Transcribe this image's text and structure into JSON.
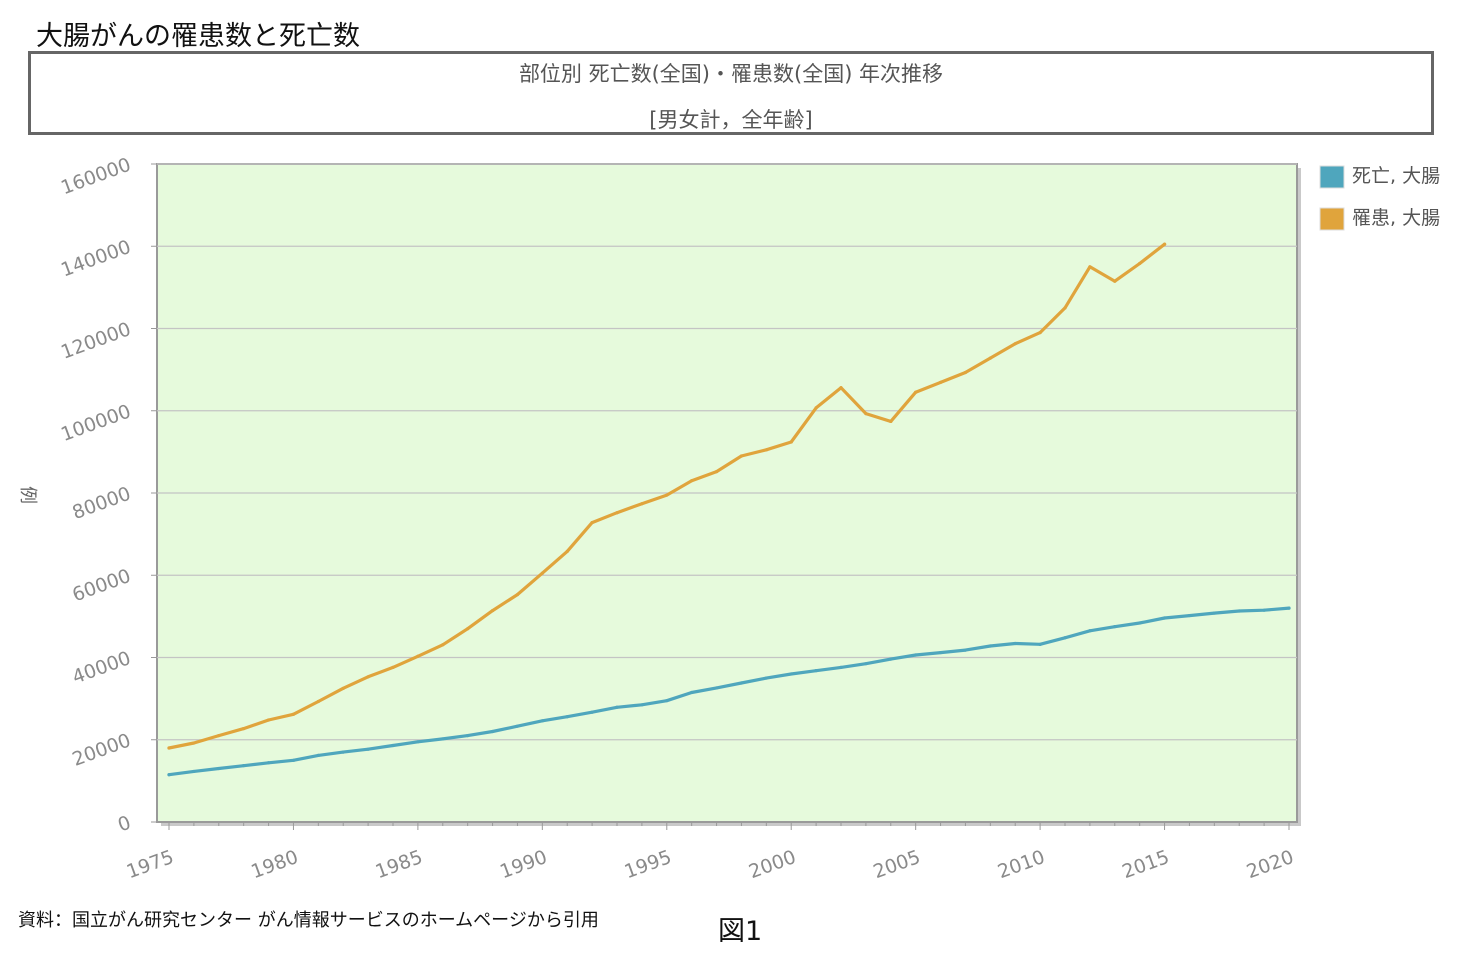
{
  "page": {
    "title": "大腸がんの罹患数と死亡数",
    "source": "資料：国立がん研究センター がん情報サービスのホームページから引用",
    "figure_label": "図1"
  },
  "chart_data": {
    "type": "line",
    "title": "部位別 死亡数(全国)・罹患数(全国) 年次推移",
    "subtitle": "[男女計，全年齢]",
    "xlabel": "",
    "ylabel": "例",
    "xlim": [
      1975,
      2020
    ],
    "ylim": [
      0,
      160000
    ],
    "x_ticks": [
      1975,
      1980,
      1985,
      1990,
      1995,
      2000,
      2005,
      2010,
      2015,
      2020
    ],
    "y_ticks": [
      0,
      20000,
      40000,
      60000,
      80000,
      100000,
      120000,
      140000,
      160000
    ],
    "grid": true,
    "legend_position": "top-right",
    "background": "#e6fadc",
    "series": [
      {
        "name": "死亡, 大腸",
        "color": "#4fa6bd",
        "x": [
          1975,
          1976,
          1977,
          1978,
          1979,
          1980,
          1981,
          1982,
          1983,
          1984,
          1985,
          1986,
          1987,
          1988,
          1989,
          1990,
          1991,
          1992,
          1993,
          1994,
          1995,
          1996,
          1997,
          1998,
          1999,
          2000,
          2001,
          2002,
          2003,
          2004,
          2005,
          2006,
          2007,
          2008,
          2009,
          2010,
          2011,
          2012,
          2013,
          2014,
          2015,
          2016,
          2017,
          2018,
          2019,
          2020
        ],
        "values": [
          11500,
          12300,
          13000,
          13700,
          14400,
          15000,
          16200,
          17000,
          17700,
          18600,
          19500,
          20200,
          21000,
          22000,
          23300,
          24600,
          25600,
          26700,
          27900,
          28500,
          29500,
          31500,
          32600,
          33800,
          35000,
          36000,
          36800,
          37600,
          38500,
          39600,
          40600,
          41200,
          41800,
          42800,
          43400,
          43200,
          44800,
          46500,
          47500,
          48400,
          49600,
          50200,
          50800,
          51300,
          51500,
          52000
        ]
      },
      {
        "name": "罹患, 大腸",
        "color": "#e0a43c",
        "x": [
          1975,
          1976,
          1977,
          1978,
          1979,
          1980,
          1981,
          1982,
          1983,
          1984,
          1985,
          1986,
          1987,
          1988,
          1989,
          1990,
          1991,
          1992,
          1993,
          1994,
          1995,
          1996,
          1997,
          1998,
          1999,
          2000,
          2001,
          2002,
          2003,
          2004,
          2005,
          2006,
          2007,
          2008,
          2009,
          2010,
          2011,
          2012,
          2013,
          2014,
          2015
        ],
        "values": [
          18000,
          19200,
          21000,
          22700,
          24800,
          26200,
          29300,
          32500,
          35300,
          37600,
          40300,
          43100,
          47000,
          51400,
          55300,
          60500,
          65800,
          72800,
          75200,
          77400,
          79500,
          83000,
          85200,
          89000,
          90500,
          92400,
          100700,
          105600,
          99300,
          97400,
          104500,
          106900,
          109300,
          112800,
          116300,
          119000,
          125000,
          135000,
          131500,
          135800,
          140500
        ]
      }
    ]
  }
}
